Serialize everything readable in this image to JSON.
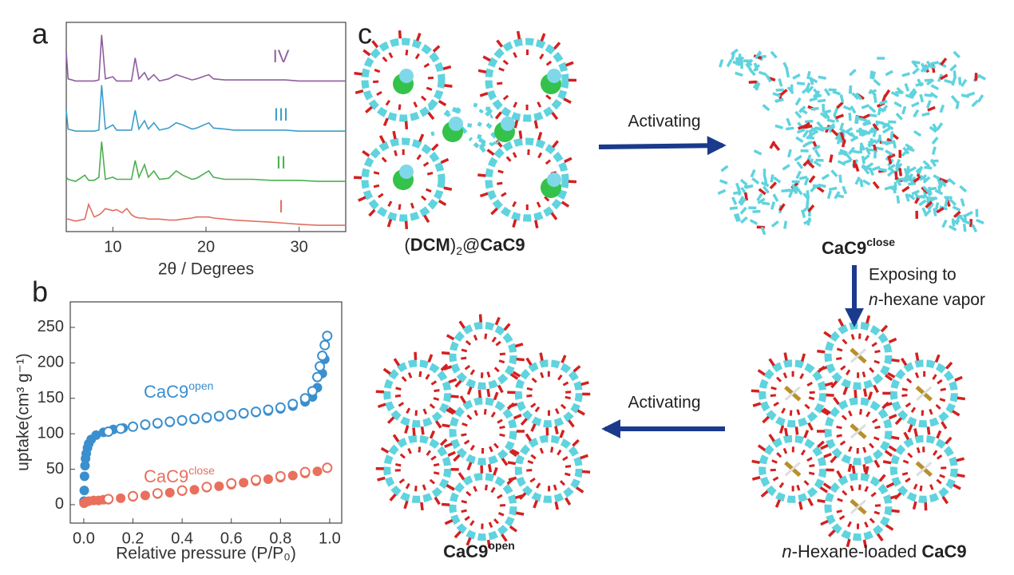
{
  "chart_data": [
    {
      "type": "line",
      "panel": "a",
      "xlabel": "2θ / Degrees",
      "x": [
        5,
        5.2,
        6,
        7,
        7.4,
        8,
        8.5,
        8.8,
        9.2,
        10,
        10.4,
        11,
        11.5,
        12,
        12.4,
        12.8,
        13.4,
        13.8,
        14.4,
        15,
        16,
        16.8,
        17.5,
        18.5,
        19,
        20.3,
        20.8,
        22,
        23,
        25,
        27,
        28.5,
        30,
        32,
        35
      ],
      "series": [
        {
          "name": "IV",
          "color": "#8e5ea2",
          "values": [
            86,
            73,
            72,
            72,
            72,
            72,
            72.5,
            94,
            73,
            74,
            72,
            72,
            72,
            72,
            83,
            73,
            76,
            72.5,
            75,
            72,
            73,
            75,
            74,
            72.5,
            73,
            75,
            73,
            72.5,
            72.5,
            72.5,
            72.5,
            72.5,
            72,
            72,
            72
          ]
        },
        {
          "name": "III",
          "color": "#3a9ec9",
          "values": [
            58,
            49,
            48,
            48,
            48,
            48,
            48.5,
            70,
            49,
            51,
            48.5,
            48.5,
            48.5,
            48.5,
            58,
            49,
            53,
            49,
            52,
            48.5,
            49.5,
            52,
            51,
            49,
            49.5,
            52,
            49.5,
            49,
            48.5,
            48.5,
            48.5,
            48.5,
            48,
            48,
            48
          ]
        },
        {
          "name": "II",
          "color": "#4caf50",
          "values": [
            26,
            25,
            24,
            27,
            24.5,
            24.5,
            26,
            43,
            25,
            26,
            25,
            25,
            25,
            25,
            34,
            26,
            32,
            26,
            29,
            25,
            25.5,
            29,
            27,
            25,
            25.5,
            29,
            26,
            25,
            25,
            25,
            24.5,
            24.5,
            24.5,
            24,
            24
          ]
        },
        {
          "name": "I",
          "color": "#e07060",
          "values": [
            6,
            6,
            5,
            6,
            13,
            7,
            8,
            9,
            11,
            10,
            10.5,
            9,
            11,
            8,
            7,
            6.5,
            6.5,
            6,
            6,
            6,
            5.5,
            5.5,
            6,
            6.5,
            7,
            7,
            6.5,
            6,
            5.5,
            5,
            4.5,
            4,
            3.5,
            3,
            3
          ]
        }
      ],
      "xlim": [
        5,
        35
      ],
      "xticks": [
        10,
        20,
        30
      ],
      "ylim": [
        0,
        100
      ]
    },
    {
      "type": "scatter",
      "panel": "b",
      "xlabel": "Relative pressure (P/P₀)",
      "ylabel": "uptake(cm³ g⁻¹)",
      "series": [
        {
          "name": "CaC9",
          "superscript": "open",
          "color": "#3a8fce",
          "x": [
            0.001,
            0.002,
            0.003,
            0.005,
            0.007,
            0.01,
            0.015,
            0.02,
            0.03,
            0.05,
            0.08,
            0.12,
            0.16,
            0.2,
            0.25,
            0.3,
            0.35,
            0.4,
            0.45,
            0.5,
            0.55,
            0.6,
            0.65,
            0.7,
            0.75,
            0.8,
            0.85,
            0.9,
            0.93,
            0.95,
            0.97,
            0.98,
            0.99
          ],
          "values": [
            5,
            20,
            40,
            55,
            65,
            72,
            80,
            86,
            92,
            98,
            102,
            106,
            108,
            110,
            112,
            114,
            116,
            118,
            120,
            122,
            124,
            126,
            128,
            130,
            132,
            135,
            139,
            145,
            152,
            165,
            185,
            205,
            238
          ],
          "desorption_x": [
            0.99,
            0.98,
            0.97,
            0.96,
            0.95,
            0.93,
            0.9,
            0.85,
            0.8,
            0.75,
            0.7,
            0.65,
            0.6,
            0.55,
            0.5,
            0.45,
            0.4,
            0.35,
            0.3,
            0.25,
            0.2,
            0.15,
            0.1
          ],
          "desorption_values": [
            238,
            225,
            210,
            195,
            180,
            160,
            150,
            142,
            137,
            134,
            131,
            129,
            127,
            125,
            123,
            121,
            119,
            117,
            115,
            113,
            110,
            107,
            103
          ]
        },
        {
          "name": "CaC9",
          "superscript": "close",
          "color": "#e8705c",
          "x": [
            0.001,
            0.005,
            0.01,
            0.02,
            0.04,
            0.06,
            0.08,
            0.1,
            0.15,
            0.2,
            0.25,
            0.3,
            0.35,
            0.4,
            0.45,
            0.5,
            0.55,
            0.6,
            0.65,
            0.7,
            0.75,
            0.8,
            0.85,
            0.9,
            0.95,
            0.99
          ],
          "values": [
            2,
            3,
            4,
            5,
            6,
            6,
            7,
            7,
            9,
            11,
            13,
            15,
            17,
            19,
            21,
            24,
            26,
            28,
            31,
            33,
            36,
            38,
            41,
            44,
            47,
            52
          ],
          "desorption_x": [
            0.99,
            0.9,
            0.8,
            0.7,
            0.6,
            0.5,
            0.4,
            0.3,
            0.2,
            0.1
          ],
          "desorption_values": [
            52,
            46,
            40,
            35,
            30,
            25,
            20,
            16,
            12,
            8
          ]
        }
      ],
      "xlim": [
        -0.055,
        1.049
      ],
      "xticks": [
        {
          "value": 0,
          "label": "0.0"
        },
        {
          "value": 0.2,
          "label": "0.2"
        },
        {
          "value": 0.4,
          "label": "0.4"
        },
        {
          "value": 0.6,
          "label": "0.6"
        },
        {
          "value": 0.8,
          "label": "0.8"
        },
        {
          "value": 1,
          "label": "1.0"
        }
      ],
      "ylim": [
        -26,
        286
      ],
      "yticks": [
        0,
        50,
        100,
        150,
        200,
        250
      ]
    }
  ],
  "panel_c": {
    "panel": "c",
    "structures": [
      {
        "label_parts": [
          "(",
          "DCM",
          ")",
          "2",
          "@",
          "CaC9"
        ]
      },
      {
        "label_parts": [
          "CaC9",
          "close"
        ]
      },
      {
        "label_parts": [
          "n",
          "-Hexane-loaded ",
          "CaC9"
        ]
      },
      {
        "label_parts": [
          "CaC9",
          "open"
        ]
      }
    ],
    "arrows": [
      {
        "label_lines": [
          "Activating"
        ]
      },
      {
        "label_lines": [
          "Exposing to",
          "-hexane vapor"
        ],
        "italic_prefix": "n"
      },
      {
        "label_lines": [
          "Activating"
        ]
      }
    ]
  }
}
